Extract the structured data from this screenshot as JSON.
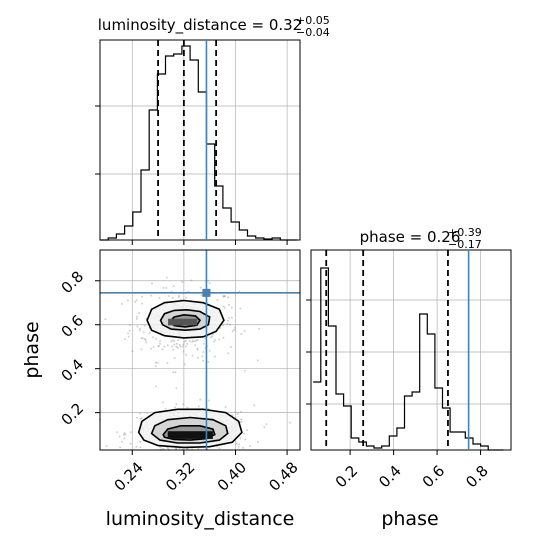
{
  "chart_data": {
    "type": "corner",
    "parameters": [
      "luminosity_distance",
      "phase"
    ],
    "truth": {
      "luminosity_distance": 0.355,
      "phase": 0.745
    },
    "colors": {
      "truth": "#4682b4",
      "hist": "#000000",
      "grid": "#b0b0b0"
    },
    "panels": [
      {
        "id": "hist-luminosity_distance",
        "type": "histogram-step",
        "title": {
          "prefix": "luminosity_distance = ",
          "value": "0.32",
          "upper": "+0.05",
          "lower": "−0.04"
        },
        "xlim": [
          0.19,
          0.5
        ],
        "ylim": [
          0,
          1.0
        ],
        "bin_edges": [
          0.19,
          0.2027,
          0.2154,
          0.2281,
          0.2408,
          0.2535,
          0.2662,
          0.2789,
          0.2916,
          0.3043,
          0.317,
          0.3297,
          0.3424,
          0.3551,
          0.3678,
          0.3805,
          0.3932,
          0.4059,
          0.4186,
          0.4313,
          0.444,
          0.4567,
          0.4694,
          0.4821,
          0.495
        ],
        "values": [
          0.0,
          0.01,
          0.03,
          0.07,
          0.14,
          0.35,
          0.65,
          0.83,
          0.92,
          0.93,
          0.97,
          0.9,
          0.74,
          0.48,
          0.27,
          0.16,
          0.09,
          0.05,
          0.02,
          0.01,
          0.005,
          0.01,
          0.0,
          0.0
        ],
        "quantiles": [
          0.28,
          0.32,
          0.37
        ],
        "y_ticks": [
          0.33,
          0.67
        ]
      },
      {
        "id": "hist-phase",
        "type": "histogram-step",
        "title": {
          "prefix": "phase = ",
          "value": "0.26",
          "upper": "+0.39",
          "lower": "−0.17"
        },
        "xlim": [
          0.02,
          0.94
        ],
        "ylim": [
          0,
          1.0
        ],
        "bin_edges": [
          0.03,
          0.065,
          0.1,
          0.135,
          0.17,
          0.205,
          0.24,
          0.275,
          0.31,
          0.345,
          0.38,
          0.415,
          0.45,
          0.485,
          0.52,
          0.555,
          0.59,
          0.625,
          0.66,
          0.695,
          0.73,
          0.765,
          0.8,
          0.835,
          0.87,
          0.905
        ],
        "values": [
          0.34,
          0.91,
          0.62,
          0.28,
          0.22,
          0.06,
          0.04,
          0.02,
          0.01,
          0.02,
          0.07,
          0.11,
          0.27,
          0.29,
          0.68,
          0.58,
          0.31,
          0.21,
          0.09,
          0.09,
          0.06,
          0.03,
          0.02,
          0.0,
          0.0
        ],
        "quantiles": [
          0.09,
          0.26,
          0.65
        ],
        "y_ticks": [
          0.23,
          0.49,
          0.75
        ],
        "x_ticks": [
          0.2,
          0.4,
          0.6,
          0.8
        ],
        "x_tick_labels": [
          "0.2",
          "0.4",
          "0.6",
          "0.8"
        ],
        "xlabel": "phase"
      },
      {
        "id": "scatter-2d",
        "type": "2d-density",
        "xlim": [
          0.19,
          0.5
        ],
        "ylim": [
          0.03,
          0.94
        ],
        "x_ticks": [
          0.24,
          0.32,
          0.4,
          0.48
        ],
        "x_tick_labels": [
          "0.24",
          "0.32",
          "0.40",
          "0.48"
        ],
        "y_ticks": [
          0.2,
          0.4,
          0.6,
          0.8
        ],
        "y_tick_labels": [
          "0.2",
          "0.4",
          "0.6",
          "0.8"
        ],
        "xlabel": "luminosity_distance",
        "ylabel": "phase",
        "clusters": [
          {
            "cx": 0.32,
            "cy": 0.605,
            "sx": 0.03,
            "sy": 0.06,
            "weight": 0.45
          },
          {
            "cx": 0.33,
            "cy": 0.105,
            "sx": 0.035,
            "sy": 0.045,
            "weight": 0.55
          }
        ],
        "contour_levels": [
          {
            "cluster": 0,
            "rings": [
              [
                [
                  0.263,
                  0.62
                ],
                [
                  0.27,
                  0.67
                ],
                [
                  0.29,
                  0.7
                ],
                [
                  0.32,
                  0.71
                ],
                [
                  0.35,
                  0.7
                ],
                [
                  0.375,
                  0.67
                ],
                [
                  0.382,
                  0.62
                ],
                [
                  0.37,
                  0.57
                ],
                [
                  0.35,
                  0.545
                ],
                [
                  0.32,
                  0.54
                ],
                [
                  0.29,
                  0.55
                ],
                [
                  0.27,
                  0.575
                ],
                [
                  0.263,
                  0.62
                ]
              ],
              [
                [
                  0.284,
                  0.62
                ],
                [
                  0.29,
                  0.65
                ],
                [
                  0.305,
                  0.665
                ],
                [
                  0.325,
                  0.668
                ],
                [
                  0.345,
                  0.66
                ],
                [
                  0.36,
                  0.635
                ],
                [
                  0.358,
                  0.6
                ],
                [
                  0.345,
                  0.58
                ],
                [
                  0.322,
                  0.575
                ],
                [
                  0.3,
                  0.58
                ],
                [
                  0.287,
                  0.6
                ],
                [
                  0.284,
                  0.62
                ]
              ],
              [
                [
                  0.298,
                  0.615
                ],
                [
                  0.305,
                  0.635
                ],
                [
                  0.32,
                  0.645
                ],
                [
                  0.338,
                  0.64
                ],
                [
                  0.345,
                  0.62
                ],
                [
                  0.34,
                  0.598
                ],
                [
                  0.322,
                  0.59
                ],
                [
                  0.305,
                  0.596
                ],
                [
                  0.298,
                  0.615
                ]
              ]
            ]
          },
          {
            "cluster": 1,
            "rings": [
              [
                [
                  0.25,
                  0.11
                ],
                [
                  0.255,
                  0.16
                ],
                [
                  0.275,
                  0.2
                ],
                [
                  0.31,
                  0.215
                ],
                [
                  0.35,
                  0.215
                ],
                [
                  0.385,
                  0.2
                ],
                [
                  0.405,
                  0.16
                ],
                [
                  0.41,
                  0.11
                ],
                [
                  0.395,
                  0.065
                ],
                [
                  0.36,
                  0.045
                ],
                [
                  0.32,
                  0.042
                ],
                [
                  0.28,
                  0.05
                ],
                [
                  0.258,
                  0.075
                ],
                [
                  0.25,
                  0.11
                ]
              ],
              [
                [
                  0.27,
                  0.105
                ],
                [
                  0.275,
                  0.14
                ],
                [
                  0.295,
                  0.168
                ],
                [
                  0.33,
                  0.178
                ],
                [
                  0.365,
                  0.168
                ],
                [
                  0.385,
                  0.14
                ],
                [
                  0.388,
                  0.105
                ],
                [
                  0.375,
                  0.075
                ],
                [
                  0.345,
                  0.062
                ],
                [
                  0.31,
                  0.062
                ],
                [
                  0.283,
                  0.075
                ],
                [
                  0.27,
                  0.105
                ]
              ],
              [
                [
                  0.288,
                  0.1
                ],
                [
                  0.295,
                  0.125
                ],
                [
                  0.315,
                  0.14
                ],
                [
                  0.345,
                  0.14
                ],
                [
                  0.365,
                  0.125
                ],
                [
                  0.368,
                  0.1
                ],
                [
                  0.355,
                  0.082
                ],
                [
                  0.33,
                  0.075
                ],
                [
                  0.305,
                  0.078
                ],
                [
                  0.29,
                  0.088
                ],
                [
                  0.288,
                  0.1
                ]
              ]
            ]
          }
        ]
      }
    ]
  }
}
